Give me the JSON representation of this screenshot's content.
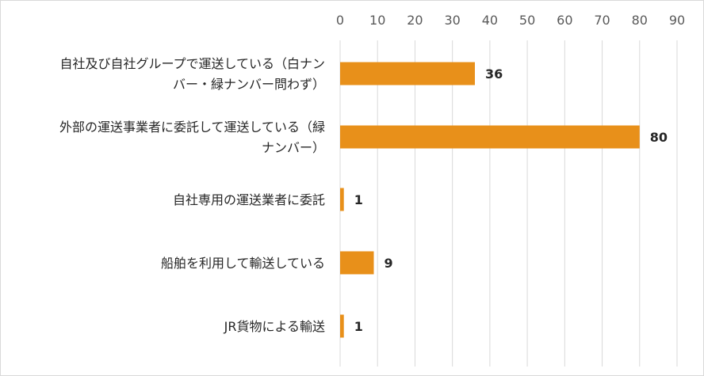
{
  "chart_data": {
    "type": "bar",
    "orientation": "horizontal",
    "x_axis_position": "top",
    "xlim": [
      0,
      90
    ],
    "x_ticks": [
      0,
      10,
      20,
      30,
      40,
      50,
      60,
      70,
      80,
      90
    ],
    "grid": true,
    "legend": "none",
    "bar_color": "#E8901A",
    "categories": [
      [
        "自社及び自社グループで運送している（白ナン",
        "バー・緑ナンバー問わず）"
      ],
      [
        "外部の運送事業者に委託して運送している（緑",
        "ナンバー）"
      ],
      [
        "自社専用の運送業者に委託"
      ],
      [
        "船舶を利用して輸送している"
      ],
      [
        "JR貨物による輸送"
      ]
    ],
    "values": [
      36,
      80,
      1,
      9,
      1
    ],
    "data_labels": [
      "36",
      "80",
      "1",
      "9",
      "1"
    ],
    "title": "",
    "xlabel": "",
    "ylabel": ""
  }
}
